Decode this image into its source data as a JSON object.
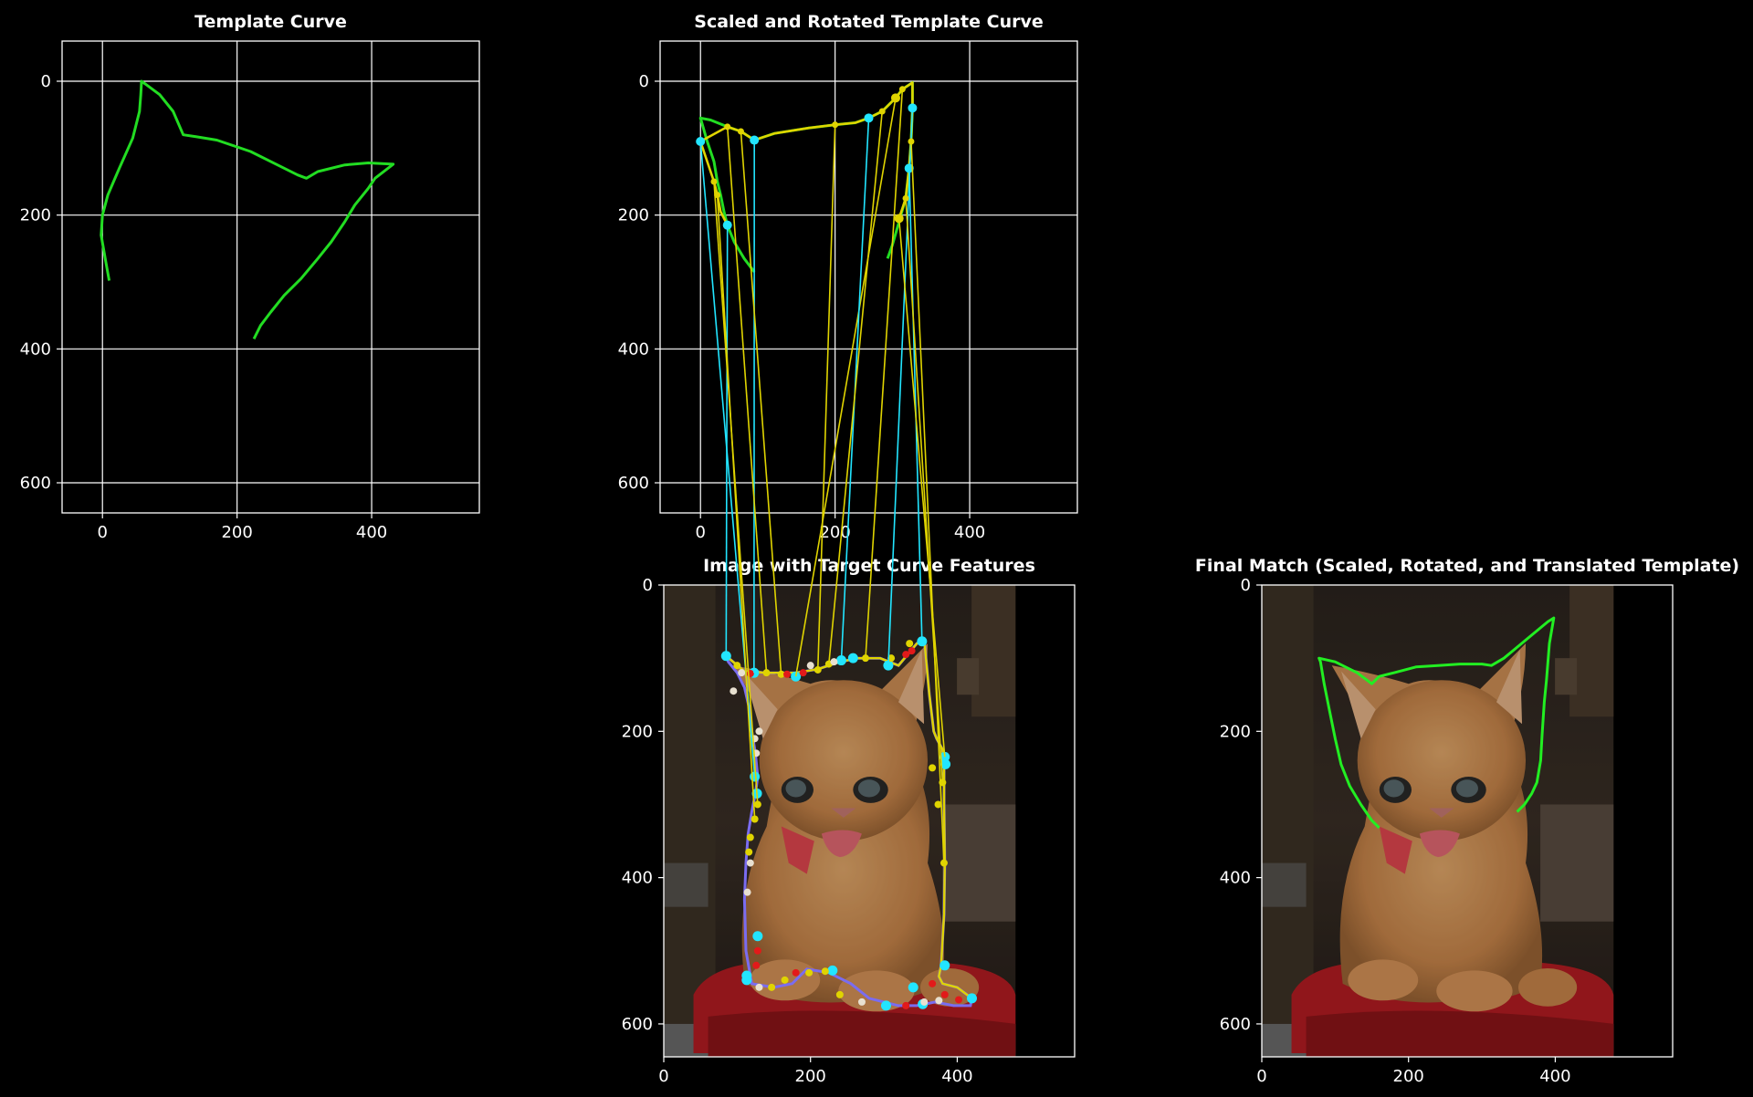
{
  "chart_data": [
    {
      "type": "line",
      "title": "Template Curve",
      "xlim": [
        -60,
        560
      ],
      "ylim": [
        645,
        -60
      ],
      "xticks": [
        "0",
        "200",
        "400"
      ],
      "xtick_values": [
        0,
        200,
        400
      ],
      "yticks": [
        "0",
        "200",
        "400",
        "600"
      ],
      "ytick_values": [
        0,
        200,
        400,
        600
      ],
      "grid": true,
      "series": [
        {
          "color": "#22dd22",
          "x": [
            10,
            5,
            -2,
            0,
            8,
            25,
            45,
            55,
            57,
            58,
            65,
            85,
            105,
            120,
            140,
            170,
            220,
            260,
            290,
            303,
            320,
            360,
            395,
            432,
            405,
            395,
            375,
            360,
            340,
            320,
            295,
            270,
            250,
            235,
            225
          ],
          "y": [
            298,
            270,
            230,
            200,
            170,
            130,
            85,
            45,
            20,
            0,
            5,
            20,
            45,
            80,
            83,
            88,
            105,
            125,
            140,
            145,
            135,
            125,
            122,
            124,
            145,
            160,
            185,
            210,
            240,
            265,
            295,
            320,
            345,
            365,
            385
          ]
        }
      ]
    },
    {
      "type": "line",
      "title": "Scaled and Rotated Template Curve",
      "xlim": [
        -60,
        560
      ],
      "ylim": [
        645,
        -60
      ],
      "xticks": [
        "0",
        "200",
        "400"
      ],
      "xtick_values": [
        0,
        200,
        400
      ],
      "yticks": [
        "0",
        "200",
        "400",
        "600"
      ],
      "ytick_values": [
        0,
        200,
        400,
        600
      ],
      "grid": true,
      "series": [
        {
          "color": "#22dd22",
          "x": [
            80,
            65,
            50,
            40,
            35,
            30,
            25,
            20,
            10,
            0,
            15,
            40,
            60,
            80,
            110,
            160,
            200,
            230,
            250,
            270,
            290,
            300,
            315,
            315,
            313,
            310,
            305,
            295,
            285,
            278
          ],
          "y": [
            285,
            265,
            240,
            215,
            195,
            170,
            150,
            120,
            90,
            55,
            58,
            68,
            75,
            88,
            78,
            70,
            65,
            62,
            55,
            45,
            25,
            12,
            2,
            40,
            90,
            130,
            175,
            210,
            245,
            265
          ]
        }
      ],
      "overlay_series": [
        {
          "color": "#e0d400",
          "x": [
            40,
            30,
            25,
            20,
            10,
            0,
            40,
            60,
            80,
            110,
            160,
            200,
            230,
            250,
            270,
            290,
            300,
            315,
            315,
            313,
            310,
            305,
            295
          ],
          "y": [
            215,
            195,
            170,
            150,
            120,
            90,
            68,
            75,
            88,
            78,
            70,
            65,
            62,
            55,
            45,
            25,
            12,
            2,
            40,
            90,
            130,
            175,
            205
          ]
        }
      ]
    },
    {
      "type": "scatter",
      "title": "Image with Target Curve Features",
      "xlim": [
        0,
        560
      ],
      "ylim": [
        645,
        0
      ],
      "xticks": [
        "0",
        "200",
        "400"
      ],
      "xtick_values": [
        0,
        200,
        400
      ],
      "yticks": [
        "0",
        "200",
        "400",
        "600"
      ],
      "ytick_values": [
        0,
        200,
        400,
        600
      ],
      "image": "kitten-photo",
      "contour": {
        "x": [
          85,
          110,
          140,
          180,
          210,
          240,
          265,
          295,
          320,
          345,
          355,
          362,
          368,
          372,
          380,
          382,
          382,
          383,
          382,
          378,
          375,
          380,
          400,
          420,
          418,
          395,
          370,
          345,
          320,
          300,
          280,
          255,
          225,
          195,
          175,
          150,
          120,
          112,
          110,
          112,
          115,
          120,
          125,
          128,
          125,
          120,
          118,
          110,
          100,
          88,
          85
        ],
        "y": [
          97,
          118,
          120,
          120,
          115,
          105,
          100,
          100,
          110,
          80,
          75,
          150,
          200,
          210,
          225,
          250,
          300,
          380,
          450,
          520,
          535,
          545,
          550,
          565,
          575,
          575,
          570,
          575,
          575,
          570,
          565,
          545,
          530,
          525,
          545,
          550,
          545,
          500,
          430,
          380,
          340,
          310,
          285,
          262,
          230,
          200,
          175,
          140,
          120,
          105,
          97
        ]
      },
      "feature_points": {
        "cyan": {
          "x": [
            85,
            123,
            180,
            242,
            258,
            306,
            352,
            383,
            384,
            383,
            124,
            127,
            128,
            113,
            113,
            230,
            303,
            340,
            353,
            420
          ],
          "y": [
            97,
            120,
            125,
            103,
            100,
            110,
            77,
            235,
            245,
            520,
            262,
            285,
            480,
            540,
            534,
            527,
            575,
            550,
            573,
            565
          ]
        },
        "yellow": {
          "x": [
            100,
            140,
            160,
            210,
            225,
            275,
            310,
            335,
            366,
            374,
            380,
            382,
            128,
            124,
            118,
            116,
            147,
            165,
            198,
            220,
            240
          ],
          "y": [
            110,
            120,
            122,
            116,
            108,
            100,
            100,
            80,
            250,
            300,
            270,
            380,
            300,
            320,
            345,
            365,
            550,
            540,
            530,
            528,
            560
          ]
        },
        "red": {
          "x": [
            118,
            168,
            190,
            338,
            330,
            128,
            126,
            180,
            330,
            366,
            383,
            402
          ],
          "y": [
            121,
            122,
            120,
            90,
            95,
            500,
            520,
            530,
            575,
            545,
            560,
            567
          ]
        },
        "white": {
          "x": [
            95,
            106,
            130,
            200,
            232,
            124,
            126,
            118,
            114,
            130,
            270,
            355,
            375
          ],
          "y": [
            145,
            120,
            200,
            110,
            105,
            210,
            230,
            380,
            420,
            550,
            570,
            570,
            568
          ]
        }
      }
    },
    {
      "type": "line",
      "title": "Final Match (Scaled, Rotated, and Translated Template)",
      "xlim": [
        0,
        560
      ],
      "ylim": [
        645,
        0
      ],
      "xticks": [
        "0",
        "200",
        "400"
      ],
      "xtick_values": [
        0,
        200,
        400
      ],
      "yticks": [
        "0",
        "200",
        "400",
        "600"
      ],
      "ytick_values": [
        0,
        200,
        400,
        600
      ],
      "image": "kitten-photo",
      "series": [
        {
          "color": "#22ee22",
          "x": [
            160,
            150,
            135,
            120,
            108,
            100,
            92,
            85,
            80,
            78,
            100,
            130,
            150,
            160,
            180,
            210,
            240,
            270,
            300,
            313,
            330,
            360,
            390,
            398,
            392,
            388,
            385,
            382,
            380,
            375,
            368,
            358,
            348
          ],
          "y": [
            332,
            322,
            300,
            275,
            245,
            210,
            170,
            135,
            105,
            100,
            105,
            120,
            135,
            125,
            120,
            112,
            110,
            108,
            108,
            110,
            100,
            75,
            50,
            45,
            80,
            130,
            160,
            205,
            240,
            270,
            285,
            300,
            310
          ]
        }
      ]
    }
  ]
}
